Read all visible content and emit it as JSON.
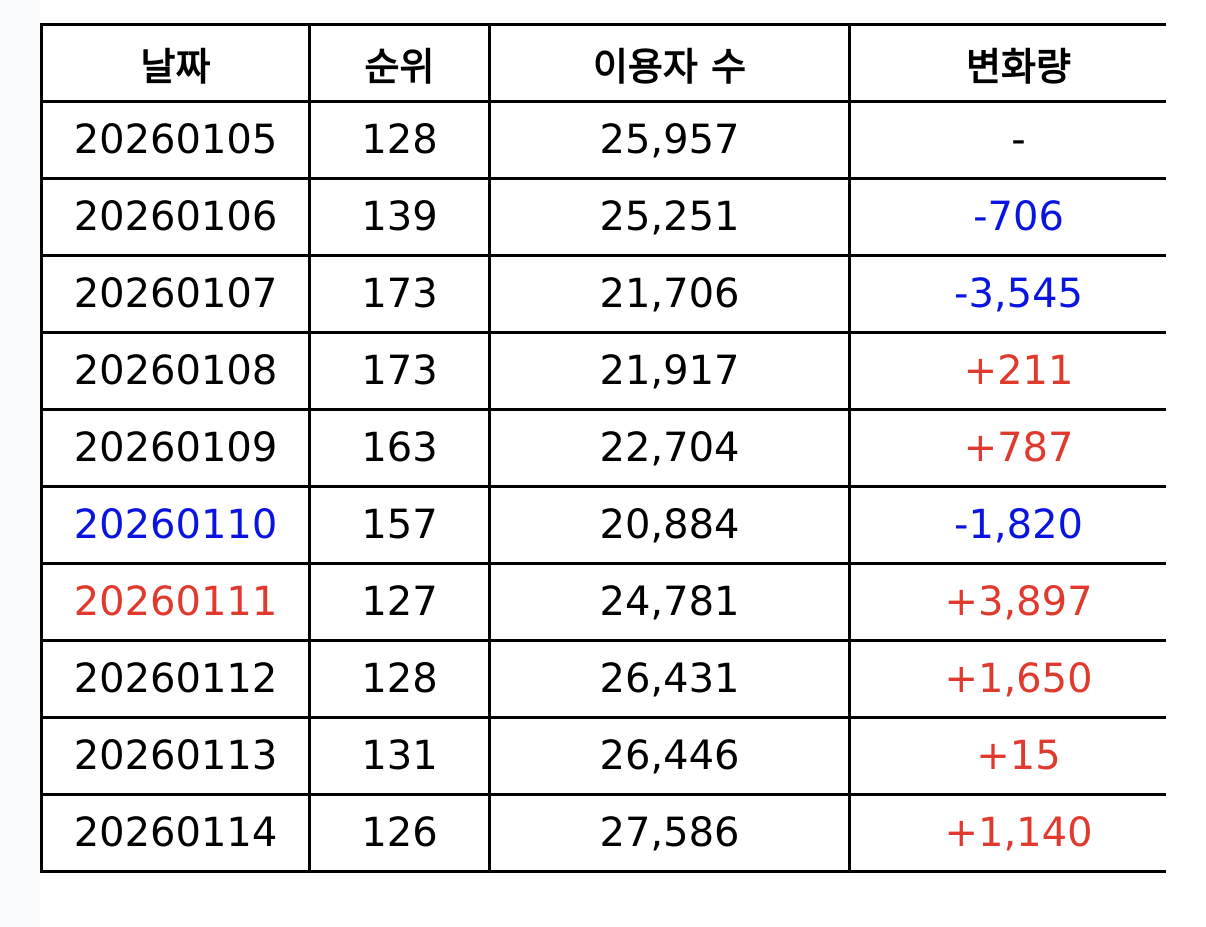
{
  "colors": {
    "negative": "#0a14e0",
    "positive": "#e03a2e",
    "text": "#000000"
  },
  "table": {
    "headers": [
      "날짜",
      "순위",
      "이용자 수",
      "변화량"
    ],
    "rows": [
      {
        "date": "20260105",
        "rank": "128",
        "users": "25,957",
        "change": "-",
        "date_color": "",
        "change_color": ""
      },
      {
        "date": "20260106",
        "rank": "139",
        "users": "25,251",
        "change": "-706",
        "date_color": "",
        "change_color": "negative"
      },
      {
        "date": "20260107",
        "rank": "173",
        "users": "21,706",
        "change": "-3,545",
        "date_color": "",
        "change_color": "negative"
      },
      {
        "date": "20260108",
        "rank": "173",
        "users": "21,917",
        "change": "+211",
        "date_color": "",
        "change_color": "positive"
      },
      {
        "date": "20260109",
        "rank": "163",
        "users": "22,704",
        "change": "+787",
        "date_color": "",
        "change_color": "positive"
      },
      {
        "date": "20260110",
        "rank": "157",
        "users": "20,884",
        "change": "-1,820",
        "date_color": "negative",
        "change_color": "negative"
      },
      {
        "date": "20260111",
        "rank": "127",
        "users": "24,781",
        "change": "+3,897",
        "date_color": "positive",
        "change_color": "positive"
      },
      {
        "date": "20260112",
        "rank": "128",
        "users": "26,431",
        "change": "+1,650",
        "date_color": "",
        "change_color": "positive"
      },
      {
        "date": "20260113",
        "rank": "131",
        "users": "26,446",
        "change": "+15",
        "date_color": "",
        "change_color": "positive"
      },
      {
        "date": "20260114",
        "rank": "126",
        "users": "27,586",
        "change": "+1,140",
        "date_color": "",
        "change_color": "positive"
      }
    ]
  }
}
